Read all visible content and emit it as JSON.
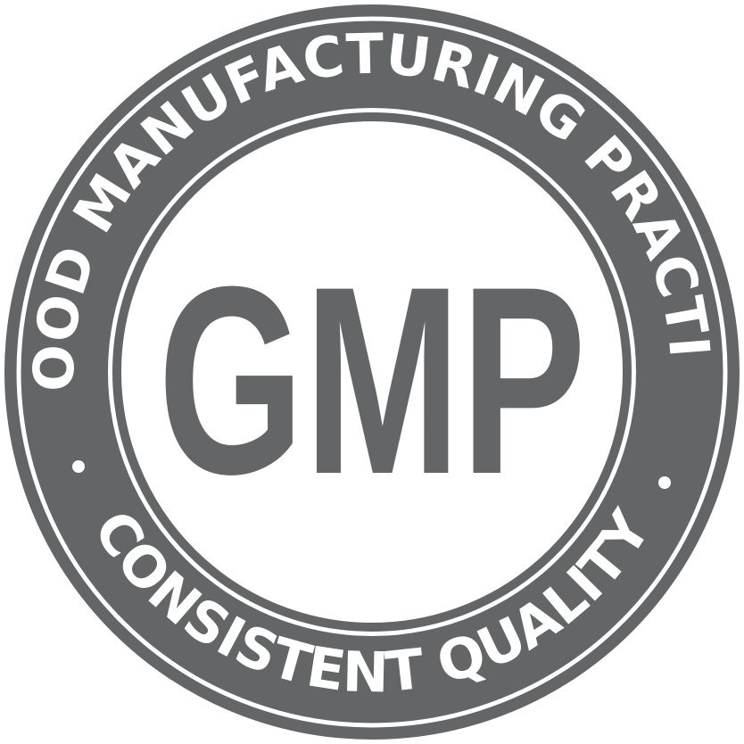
{
  "seal": {
    "top_text": "GOOD MANUFACTURING PRACTICE",
    "bottom_text": "CONSISTENT QUALITY",
    "center_text": "GMP",
    "separator": "•"
  },
  "colors": {
    "seal_gray": "#646566",
    "background": "#ffffff"
  }
}
